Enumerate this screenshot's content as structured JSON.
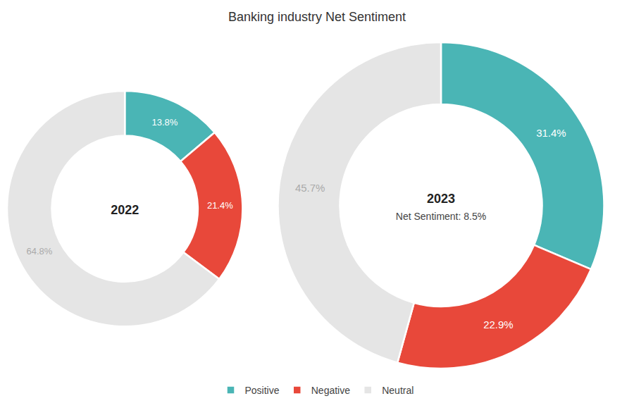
{
  "chart_data": [
    {
      "type": "pie",
      "title": "Banking industry Net Sentiment",
      "categories": [
        "Positive",
        "Negative",
        "Neutral"
      ],
      "values": [
        13.8,
        21.4,
        64.8
      ],
      "value_labels": [
        "13.8%",
        "21.4%",
        "64.8%"
      ],
      "colors": [
        "#4ab5b5",
        "#e8483a",
        "#e5e5e5"
      ],
      "annotations": [
        "2022"
      ],
      "data_labels": true,
      "legend": "bottom"
    },
    {
      "type": "pie",
      "categories": [
        "Positive",
        "Negative",
        "Neutral"
      ],
      "values": [
        31.4,
        22.9,
        45.7
      ],
      "value_labels": [
        "31.4%",
        "22.9%",
        "45.7%"
      ],
      "colors": [
        "#4ab5b5",
        "#e8483a",
        "#e5e5e5"
      ],
      "annotations": [
        "2023",
        "Net Sentiment: 8.5%"
      ],
      "data_labels": true,
      "legend": "bottom"
    }
  ]
}
